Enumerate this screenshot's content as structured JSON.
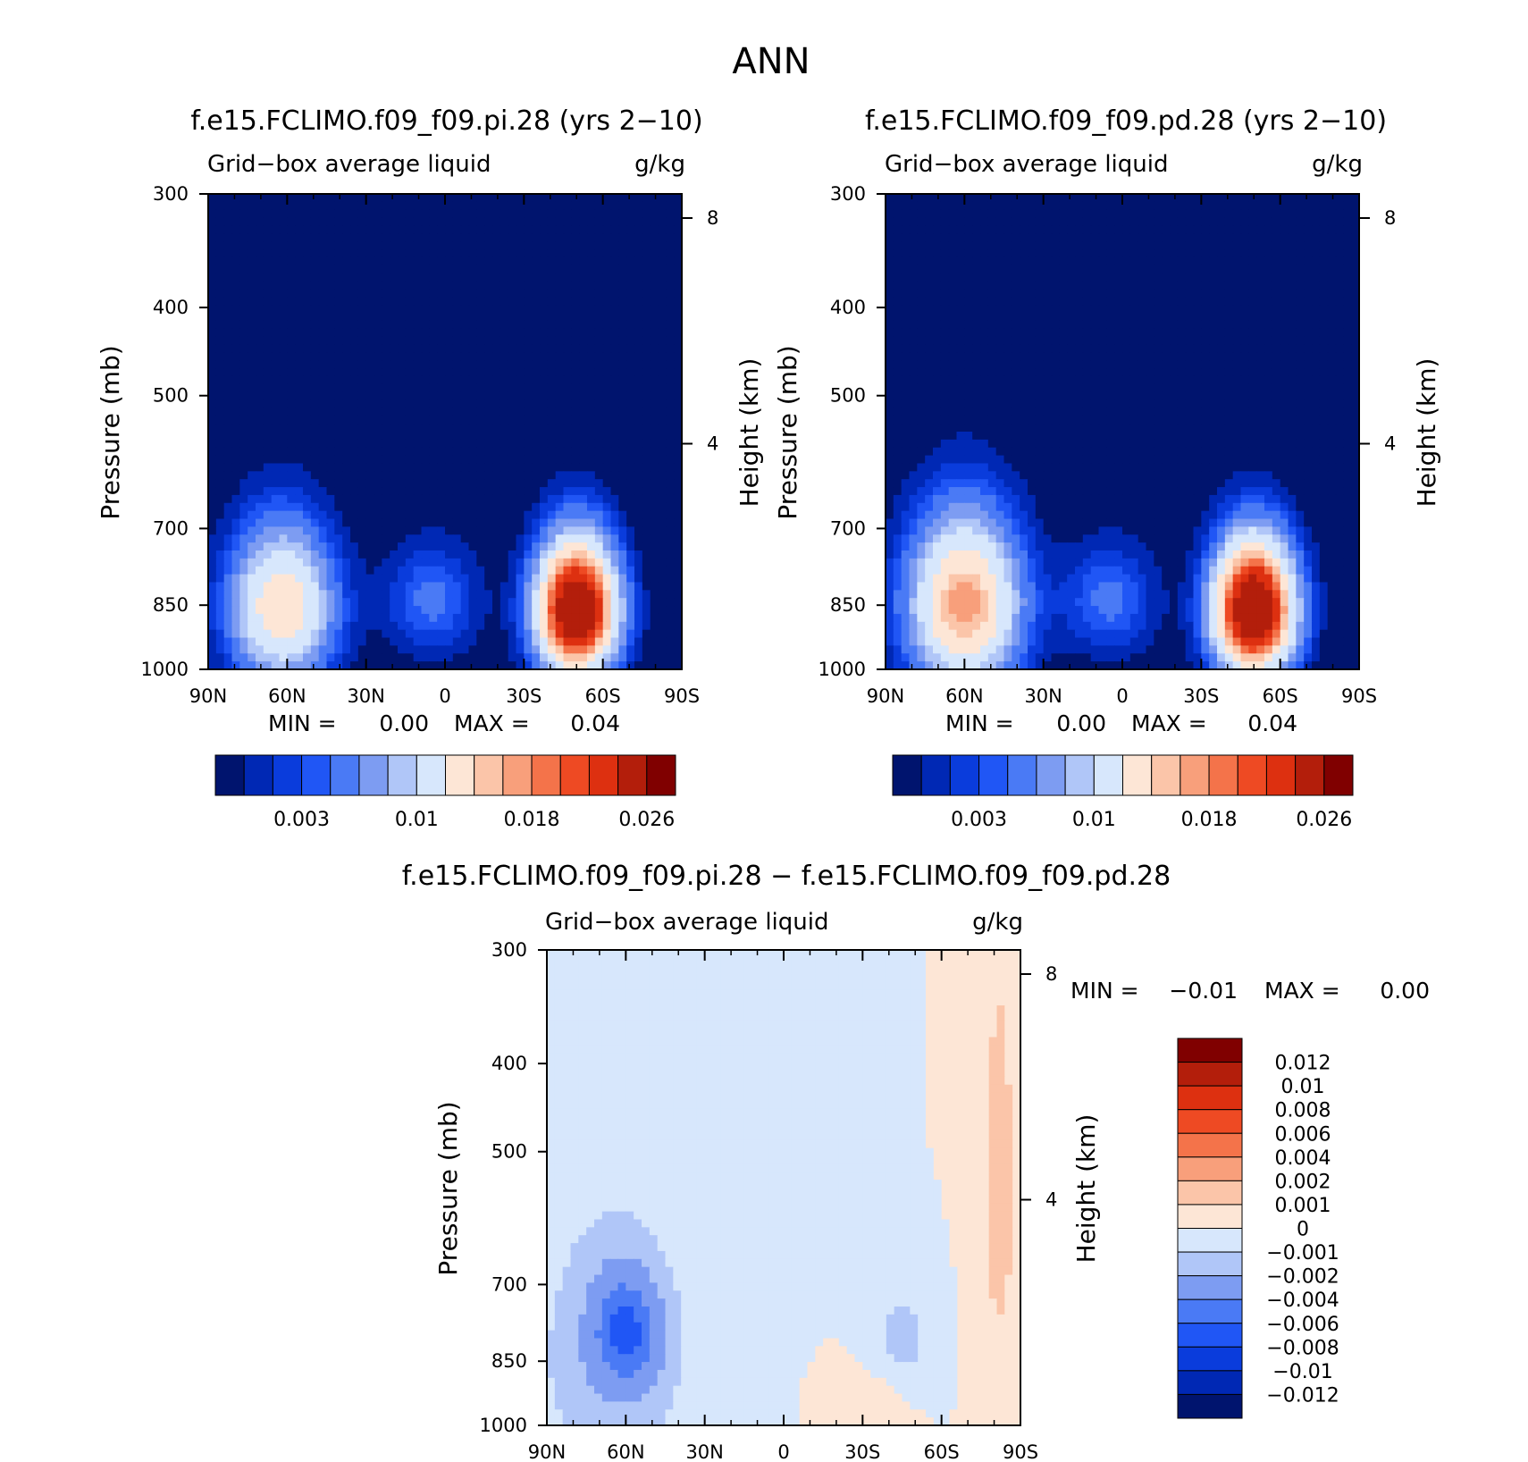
{
  "page_title": "ANN",
  "chart_data": [
    {
      "type": "heatmap",
      "title": "f.e15.FCLIMO.f09_f09.pi.28 (yrs 2−10)",
      "subtitle_left": "Grid−box average liquid",
      "subtitle_right": "g/kg",
      "ylabel": "Pressure (mb)",
      "y2label": "Height (km)",
      "x_ticks": [
        "90N",
        "60N",
        "30N",
        "0",
        "30S",
        "60S",
        "90S"
      ],
      "y_ticks": [
        "300",
        "400",
        "500",
        "700",
        "850",
        "1000"
      ],
      "y2_ticks": [
        "8",
        "4"
      ],
      "min_label": "MIN =",
      "min_value": "0.00",
      "max_label": "MAX =",
      "max_value": "0.04",
      "colorbar_labels": [
        "0.003",
        "0.01",
        "0.018",
        "0.026"
      ],
      "levels": [
        0.001,
        0.002,
        0.003,
        0.004,
        0.006,
        0.008,
        0.01,
        0.014,
        0.018,
        0.02,
        0.022,
        0.024,
        0.026,
        0.03
      ],
      "colors": [
        "#00146e",
        "#0028b4",
        "#0a3cdc",
        "#2056f5",
        "#4a7af5",
        "#7d9cf2",
        "#b0c6f8",
        "#d7e7fc",
        "#fde6d6",
        "#fbc5a9",
        "#f89f7b",
        "#f4734a",
        "#ee4a23",
        "#dd3010",
        "#b31e0b",
        "#800000"
      ],
      "features": [
        {
          "lat": 62,
          "p": 855,
          "amp": 0.0175,
          "sx": 13,
          "sy": 110
        },
        {
          "lat": -50,
          "p": 860,
          "amp": 0.038,
          "sx": 10,
          "sy": 95
        },
        {
          "lat": 5,
          "p": 840,
          "amp": 0.0045,
          "sx": 12,
          "sy": 80
        }
      ]
    },
    {
      "type": "heatmap",
      "title": "f.e15.FCLIMO.f09_f09.pd.28 (yrs 2−10)",
      "subtitle_left": "Grid−box average liquid",
      "subtitle_right": "g/kg",
      "ylabel": "Pressure (mb)",
      "y2label": "Height (km)",
      "x_ticks": [
        "90N",
        "60N",
        "30N",
        "0",
        "30S",
        "60S",
        "90S"
      ],
      "y_ticks": [
        "300",
        "400",
        "500",
        "700",
        "850",
        "1000"
      ],
      "y2_ticks": [
        "8",
        "4"
      ],
      "min_label": "MIN =",
      "min_value": "0.00",
      "max_label": "MAX =",
      "max_value": "0.04",
      "colorbar_labels": [
        "0.003",
        "0.01",
        "0.018",
        "0.026"
      ],
      "levels": [
        0.001,
        0.002,
        0.003,
        0.004,
        0.006,
        0.008,
        0.01,
        0.014,
        0.018,
        0.02,
        0.022,
        0.024,
        0.026,
        0.03
      ],
      "colors": [
        "#00146e",
        "#0028b4",
        "#0a3cdc",
        "#2056f5",
        "#4a7af5",
        "#7d9cf2",
        "#b0c6f8",
        "#d7e7fc",
        "#fde6d6",
        "#fbc5a9",
        "#f89f7b",
        "#f4734a",
        "#ee4a23",
        "#dd3010",
        "#b31e0b",
        "#800000"
      ],
      "features": [
        {
          "lat": 60,
          "p": 850,
          "amp": 0.0215,
          "sx": 14,
          "sy": 120
        },
        {
          "lat": -50,
          "p": 860,
          "amp": 0.039,
          "sx": 10,
          "sy": 95
        },
        {
          "lat": 5,
          "p": 840,
          "amp": 0.0045,
          "sx": 12,
          "sy": 80
        }
      ]
    },
    {
      "type": "heatmap",
      "title": "f.e15.FCLIMO.f09_f09.pi.28 − f.e15.FCLIMO.f09_f09.pd.28",
      "subtitle_left": "Grid−box average liquid",
      "subtitle_right": "g/kg",
      "ylabel": "Pressure (mb)",
      "y2label": "Height (km)",
      "x_ticks": [
        "90N",
        "60N",
        "30N",
        "0",
        "30S",
        "60S",
        "90S"
      ],
      "y_ticks": [
        "300",
        "400",
        "500",
        "700",
        "850",
        "1000"
      ],
      "y2_ticks": [
        "8",
        "4"
      ],
      "min_label": "MIN =",
      "min_value": "−0.01",
      "max_label": "MAX =",
      "max_value": "0.00",
      "colorbar_labels": [
        "0.012",
        "0.01",
        "0.008",
        "0.006",
        "0.004",
        "0.002",
        "0.001",
        "0",
        "−0.001",
        "−0.002",
        "−0.004",
        "−0.006",
        "−0.008",
        "−0.01",
        "−0.012"
      ],
      "levels": [
        -0.012,
        -0.01,
        -0.008,
        -0.006,
        -0.004,
        -0.002,
        -0.001,
        0,
        0.001,
        0.002,
        0.004,
        0.006,
        0.008,
        0.01,
        0.012
      ],
      "colors": [
        "#00146e",
        "#0028b4",
        "#0a3cdc",
        "#2056f5",
        "#4a7af5",
        "#7d9cf2",
        "#b0c6f8",
        "#d7e7fc",
        "#fde6d6",
        "#fbc5a9",
        "#f89f7b",
        "#f4734a",
        "#ee4a23",
        "#dd3010",
        "#b31e0b",
        "#800000"
      ],
      "features": [
        {
          "lat": 60,
          "p": 790,
          "amp": -0.0055,
          "sx": 8,
          "sy": 70
        },
        {
          "lat": 65,
          "p": 840,
          "amp": -0.0018,
          "sx": 22,
          "sy": 230
        },
        {
          "lat": -45,
          "p": 800,
          "amp": -0.0016,
          "sx": 7,
          "sy": 60
        },
        {
          "lat": -82,
          "p": 550,
          "amp": 0.0015,
          "sx": 5,
          "sy": 230
        },
        {
          "lat": -30,
          "p": 960,
          "amp": 0.001,
          "sx": 8,
          "sy": 50
        }
      ]
    }
  ]
}
